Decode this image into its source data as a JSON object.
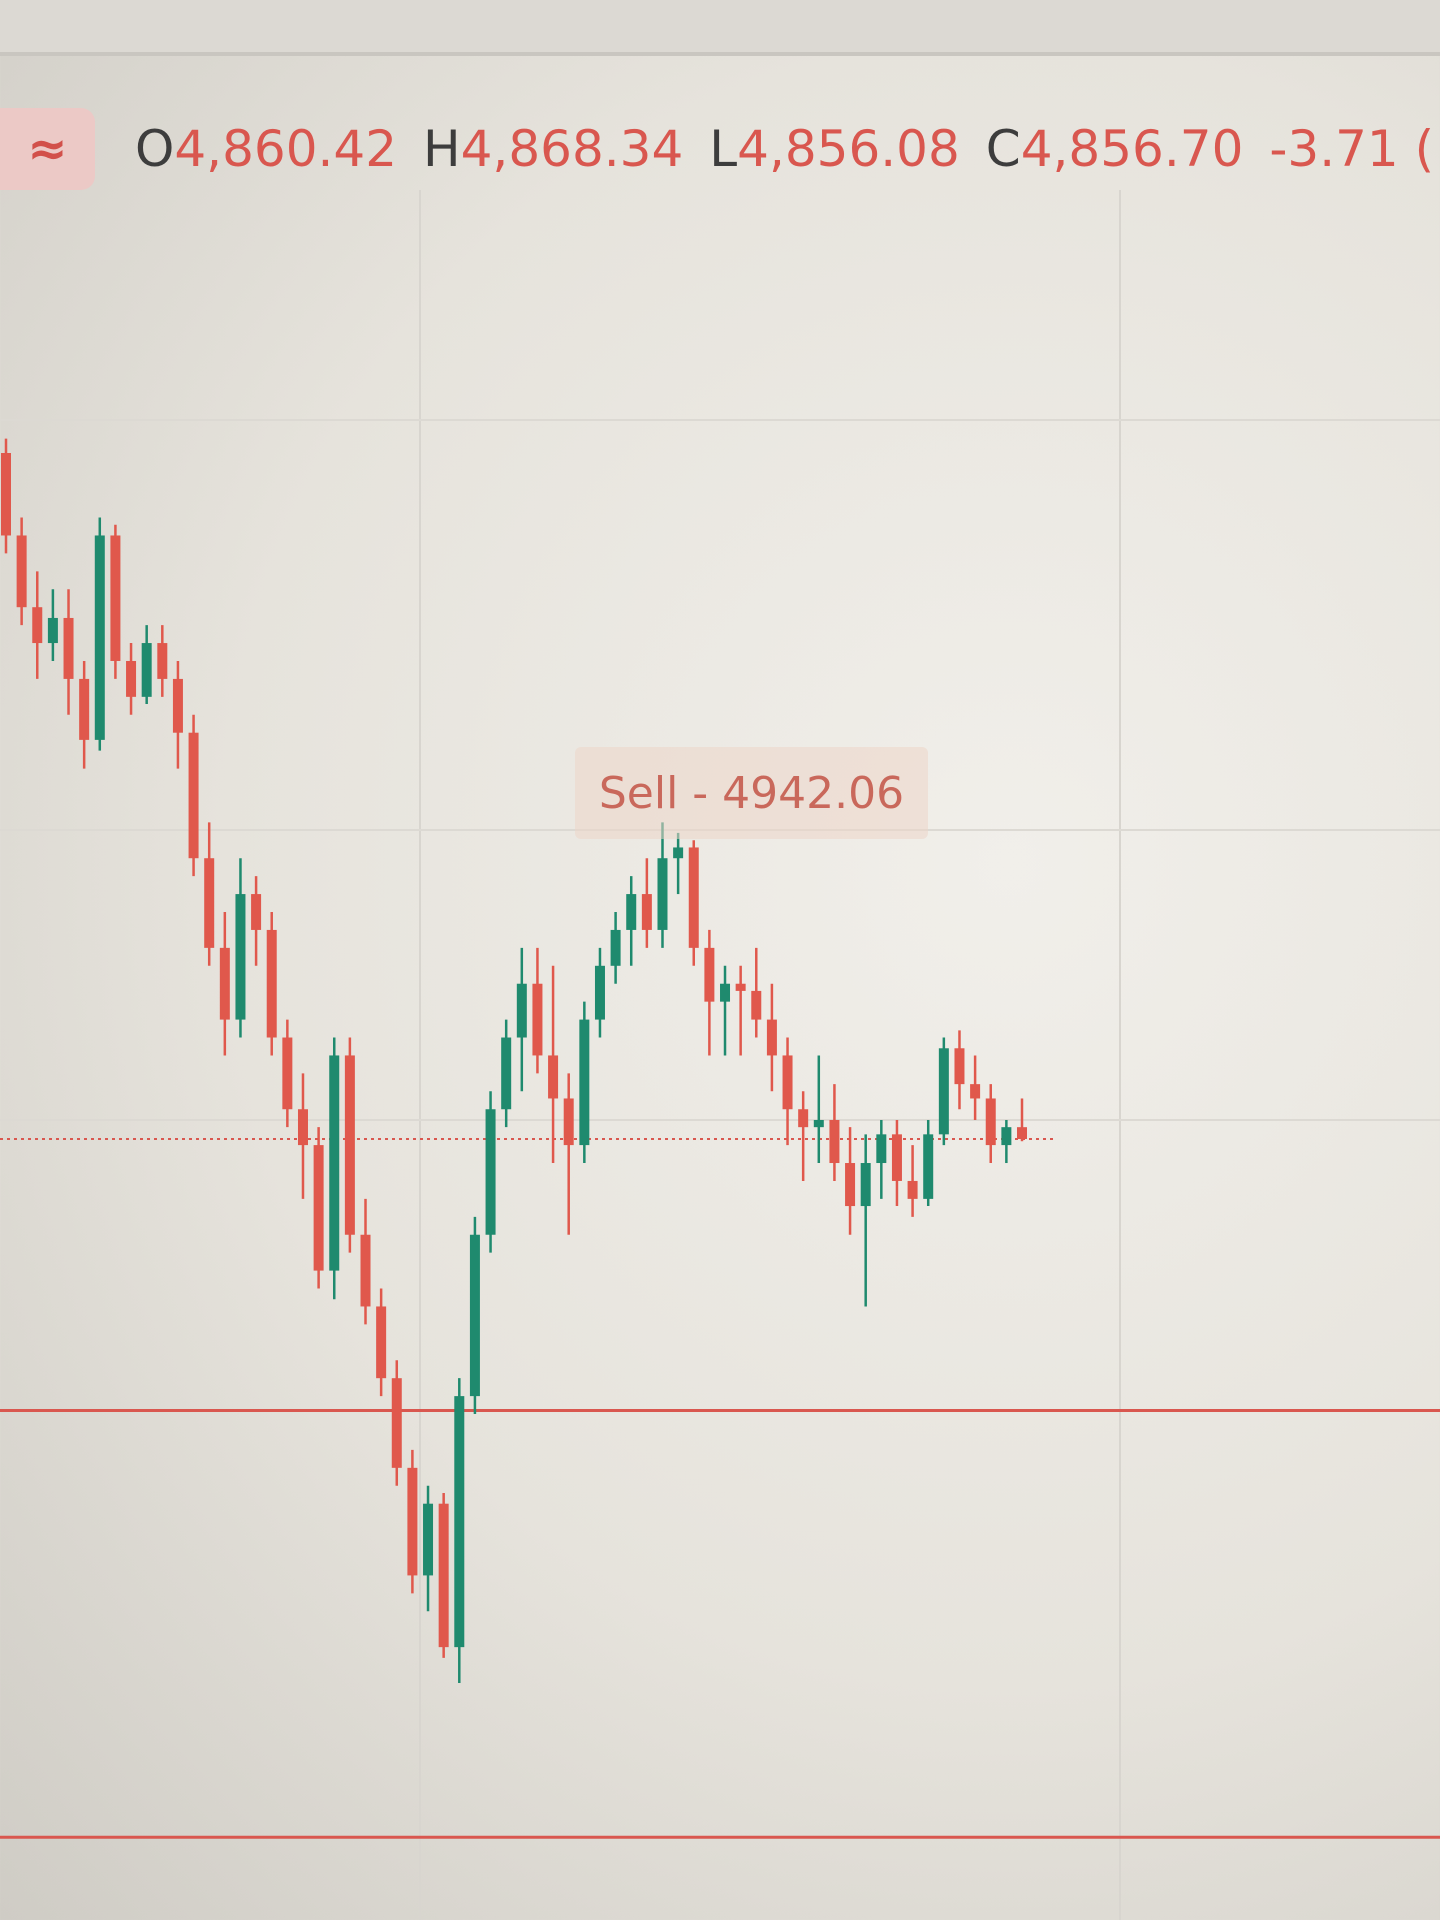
{
  "header": {
    "icon": "approx-equal-icon",
    "icon_glyph": "≈",
    "o_key": "O",
    "o": "4,860.42",
    "h_key": "H",
    "h": "4,868.34",
    "l_key": "L",
    "l": "4,856.08",
    "c_key": "C",
    "c": "4,856.70",
    "change": "-3.71 ("
  },
  "order_label": {
    "text": "Sell - 4942.06",
    "price": 4942.06
  },
  "colors": {
    "up": "#1f8a6e",
    "down": "#e0584c",
    "text_red": "#d9574f"
  },
  "chart_data": {
    "type": "candlestick",
    "title": "",
    "current_price": 4856.7,
    "horizontal_lines": [
      {
        "price": 4781,
        "style": "solid",
        "color": "#d9574f"
      },
      {
        "price": 4662,
        "style": "solid",
        "color": "#d9574f"
      }
    ],
    "ylim": [
      4640,
      5180
    ],
    "grid": true,
    "ohlc": [
      [
        5048,
        5052,
        5020,
        5025
      ],
      [
        5025,
        5030,
        5000,
        5005
      ],
      [
        5005,
        5015,
        4985,
        4995
      ],
      [
        4995,
        5010,
        4990,
        5002
      ],
      [
        5002,
        5010,
        4975,
        4985
      ],
      [
        4985,
        4990,
        4960,
        4968
      ],
      [
        4968,
        5030,
        4965,
        5025
      ],
      [
        5025,
        5028,
        4985,
        4990
      ],
      [
        4990,
        4995,
        4975,
        4980
      ],
      [
        4980,
        5000,
        4978,
        4995
      ],
      [
        4995,
        5000,
        4980,
        4985
      ],
      [
        4985,
        4990,
        4960,
        4970
      ],
      [
        4970,
        4975,
        4930,
        4935
      ],
      [
        4935,
        4945,
        4905,
        4910
      ],
      [
        4910,
        4920,
        4880,
        4890
      ],
      [
        4890,
        4935,
        4885,
        4925
      ],
      [
        4925,
        4930,
        4905,
        4915
      ],
      [
        4915,
        4920,
        4880,
        4885
      ],
      [
        4885,
        4890,
        4860,
        4865
      ],
      [
        4865,
        4875,
        4840,
        4855
      ],
      [
        4855,
        4860,
        4815,
        4820
      ],
      [
        4820,
        4885,
        4812,
        4880
      ],
      [
        4880,
        4885,
        4825,
        4830
      ],
      [
        4830,
        4840,
        4805,
        4810
      ],
      [
        4810,
        4815,
        4785,
        4790
      ],
      [
        4790,
        4795,
        4760,
        4765
      ],
      [
        4765,
        4770,
        4730,
        4735
      ],
      [
        4735,
        4760,
        4725,
        4755
      ],
      [
        4755,
        4758,
        4712,
        4715
      ],
      [
        4715,
        4790,
        4705,
        4785
      ],
      [
        4785,
        4835,
        4780,
        4830
      ],
      [
        4830,
        4870,
        4825,
        4865
      ],
      [
        4865,
        4890,
        4860,
        4885
      ],
      [
        4885,
        4910,
        4870,
        4900
      ],
      [
        4900,
        4910,
        4875,
        4880
      ],
      [
        4880,
        4905,
        4850,
        4868
      ],
      [
        4868,
        4875,
        4830,
        4855
      ],
      [
        4855,
        4895,
        4850,
        4890
      ],
      [
        4890,
        4910,
        4885,
        4905
      ],
      [
        4905,
        4920,
        4900,
        4915
      ],
      [
        4915,
        4930,
        4905,
        4925
      ],
      [
        4925,
        4935,
        4910,
        4915
      ],
      [
        4915,
        4945,
        4910,
        4935
      ],
      [
        4935,
        4942.06,
        4925,
        4938
      ],
      [
        4938,
        4940,
        4905,
        4910
      ],
      [
        4910,
        4915,
        4880,
        4895
      ],
      [
        4895,
        4905,
        4880,
        4900
      ],
      [
        4900,
        4905,
        4880,
        4898
      ],
      [
        4898,
        4910,
        4885,
        4890
      ],
      [
        4890,
        4900,
        4870,
        4880
      ],
      [
        4880,
        4885,
        4855,
        4865
      ],
      [
        4865,
        4870,
        4845,
        4860
      ],
      [
        4860,
        4880,
        4850,
        4862
      ],
      [
        4862,
        4872,
        4845,
        4850
      ],
      [
        4850,
        4860,
        4830,
        4838
      ],
      [
        4838,
        4858,
        4810,
        4850
      ],
      [
        4850,
        4862,
        4840,
        4858
      ],
      [
        4858,
        4862,
        4838,
        4845
      ],
      [
        4845,
        4855,
        4835,
        4840
      ],
      [
        4840,
        4862,
        4838,
        4858
      ],
      [
        4858,
        4885,
        4855,
        4882
      ],
      [
        4882,
        4887,
        4865,
        4872
      ],
      [
        4872,
        4880,
        4862,
        4868
      ],
      [
        4868,
        4872,
        4850,
        4855
      ],
      [
        4855,
        4862,
        4850,
        4860
      ],
      [
        4860,
        4868,
        4856.08,
        4856.7
      ]
    ]
  }
}
